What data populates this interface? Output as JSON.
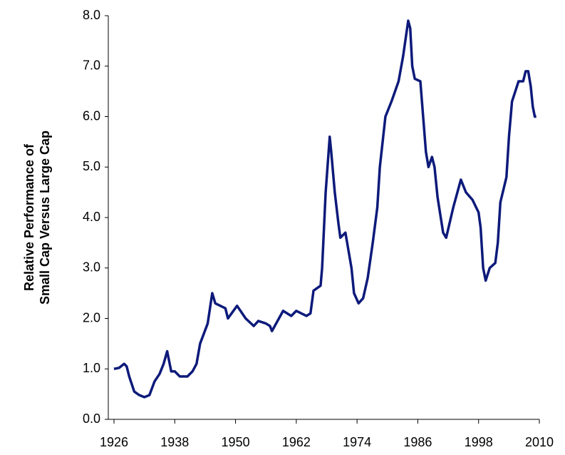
{
  "chart_data": {
    "type": "line",
    "ylabel": [
      "Relative Performance of",
      "Small Cap Versus Large Cap"
    ],
    "x": [
      1926,
      1927,
      1928,
      1928.5,
      1929,
      1930,
      1931,
      1932,
      1933,
      1934,
      1935,
      1935.8,
      1936.5,
      1937.3,
      1938,
      1939,
      1940.5,
      1941.5,
      1942.3,
      1943,
      1944.5,
      1945.4,
      1946,
      1948,
      1948.5,
      1950.3,
      1952,
      1953.6,
      1954.5,
      1956,
      1956.8,
      1957.2,
      1959.4,
      1961,
      1962,
      1964,
      1964.8,
      1965.4,
      1966.8,
      1967.1,
      1967.8,
      1968.6,
      1968.9,
      1969.6,
      1970.3,
      1970.7,
      1971.7,
      1972.9,
      1973.4,
      1974.3,
      1975.2,
      1976.1,
      1977.1,
      1978,
      1978.5,
      1979.6,
      1980.8,
      1982.2,
      1983.1,
      1984.1,
      1984.5,
      1984.9,
      1985.4,
      1986.5,
      1987.6,
      1988.1,
      1988.8,
      1989.3,
      1989.9,
      1991,
      1991.6,
      1993,
      1994.5,
      1995.5,
      1996.8,
      1998,
      1998.4,
      1998.9,
      1999.4,
      2000.2,
      2001.3,
      2001.8,
      2002.3,
      2003.5,
      2004,
      2004.6,
      2005.9,
      2006.8,
      2007.3,
      2007.8,
      2008.3,
      2008.7,
      2009.1,
      2009.4
    ],
    "series": [
      {
        "color": "#0d1a7a",
        "values": [
          1.0,
          1.02,
          1.1,
          1.05,
          0.85,
          0.55,
          0.48,
          0.44,
          0.48,
          0.75,
          0.9,
          1.1,
          1.35,
          0.95,
          0.95,
          0.85,
          0.85,
          0.95,
          1.1,
          1.5,
          1.9,
          2.5,
          2.3,
          2.2,
          2.0,
          2.25,
          2.0,
          1.85,
          1.95,
          1.9,
          1.85,
          1.75,
          2.15,
          2.05,
          2.15,
          2.05,
          2.1,
          2.55,
          2.65,
          3.0,
          4.5,
          5.6,
          5.3,
          4.5,
          3.9,
          3.6,
          3.7,
          3.0,
          2.5,
          2.3,
          2.4,
          2.8,
          3.5,
          4.2,
          5.0,
          6.0,
          6.3,
          6.7,
          7.2,
          7.9,
          7.75,
          7.0,
          6.75,
          6.7,
          5.3,
          5.0,
          5.2,
          5.0,
          4.4,
          3.7,
          3.6,
          4.2,
          4.75,
          4.5,
          4.35,
          4.1,
          3.8,
          3.0,
          2.75,
          3.0,
          3.1,
          3.5,
          4.3,
          4.8,
          5.6,
          6.3,
          6.7,
          6.7,
          6.9,
          6.9,
          6.6,
          6.2,
          6.0,
          6.0
        ]
      }
    ],
    "xlim": [
      1926,
      2010
    ],
    "xticks": [
      1926,
      1938,
      1950,
      1962,
      1974,
      1986,
      1998,
      2010
    ],
    "ylim": [
      0,
      8
    ],
    "yticks": [
      {
        "value": 0,
        "label": "0.0"
      },
      {
        "value": 1,
        "label": "1.0"
      },
      {
        "value": 2,
        "label": "2.0"
      },
      {
        "value": 3,
        "label": "3.0"
      },
      {
        "value": 4,
        "label": "4.0"
      },
      {
        "value": 5,
        "label": "5.0"
      },
      {
        "value": 6,
        "label": "6.0"
      },
      {
        "value": 7,
        "label": "7.0"
      },
      {
        "value": 8,
        "label": "8.0"
      }
    ]
  }
}
